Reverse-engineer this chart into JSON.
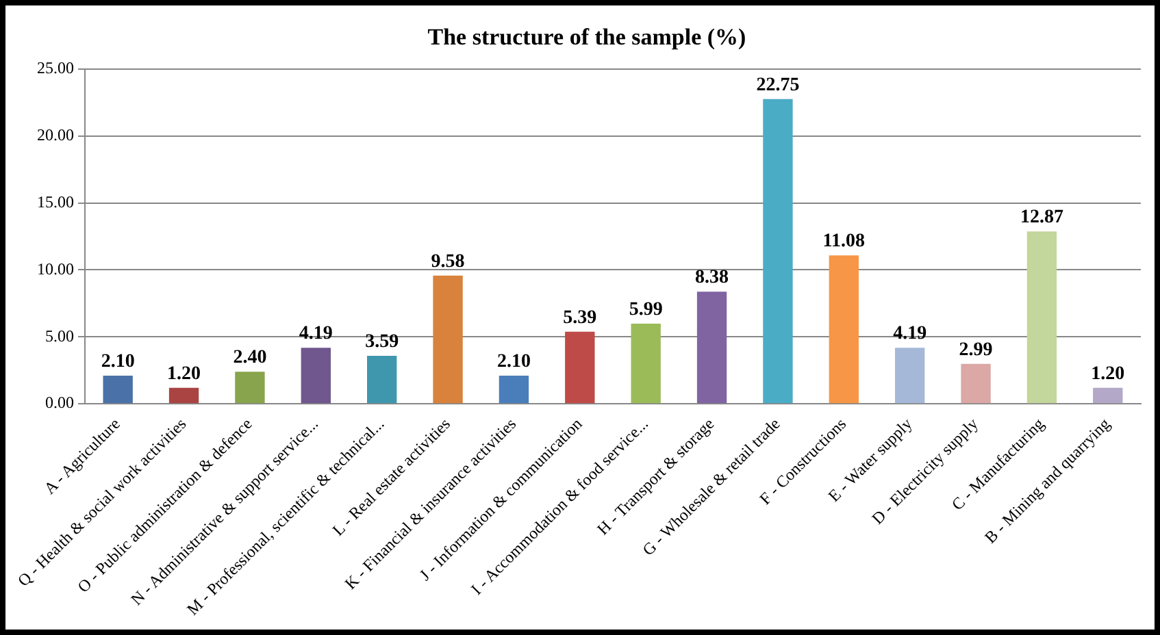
{
  "chart_data": {
    "type": "bar",
    "title": "The structure of the sample (%)",
    "categories": [
      "A - Agriculture",
      "Q - Health & social work activities",
      "O - Public administration & defence",
      "N - Administrative & support service...",
      "M - Professional, scientific & technical...",
      "L - Real estate activities",
      "K - Financial & insurance activities",
      "J - Information & communication",
      "I - Accommodation & food service...",
      "H - Transport & storage",
      "G - Wholesale & retail trade",
      "F - Constructions",
      "E - Water supply",
      "D - Electricity supply",
      "C - Manufacturing",
      "B - Mining and quarrying"
    ],
    "values": [
      2.1,
      1.2,
      2.4,
      4.19,
      3.59,
      9.58,
      2.1,
      5.39,
      5.99,
      8.38,
      22.75,
      11.08,
      4.19,
      2.99,
      12.87,
      1.2
    ],
    "colors": [
      "#4a72a8",
      "#a94442",
      "#88a44d",
      "#70578e",
      "#3f97ad",
      "#d9823b",
      "#4a7ebb",
      "#bf4b48",
      "#9bbb59",
      "#8064a2",
      "#4bacc6",
      "#f79646",
      "#a5b8d8",
      "#dba8a6",
      "#c3d69b",
      "#b3a8c8"
    ],
    "ylim": [
      0,
      25
    ],
    "yticks": [
      {
        "value": 0,
        "label": "0.00"
      },
      {
        "value": 5,
        "label": "5.00"
      },
      {
        "value": 10,
        "label": "10.00"
      },
      {
        "value": 15,
        "label": "15.00"
      },
      {
        "value": 20,
        "label": "20.00"
      },
      {
        "value": 25,
        "label": "25.00"
      }
    ],
    "value_labels": [
      "2.10",
      "1.20",
      "2.40",
      "4.19",
      "3.59",
      "9.58",
      "2.10",
      "5.39",
      "5.99",
      "8.38",
      "22.75",
      "11.08",
      "4.19",
      "2.99",
      "12.87",
      "1.20"
    ],
    "grid": "y",
    "legend": false
  }
}
